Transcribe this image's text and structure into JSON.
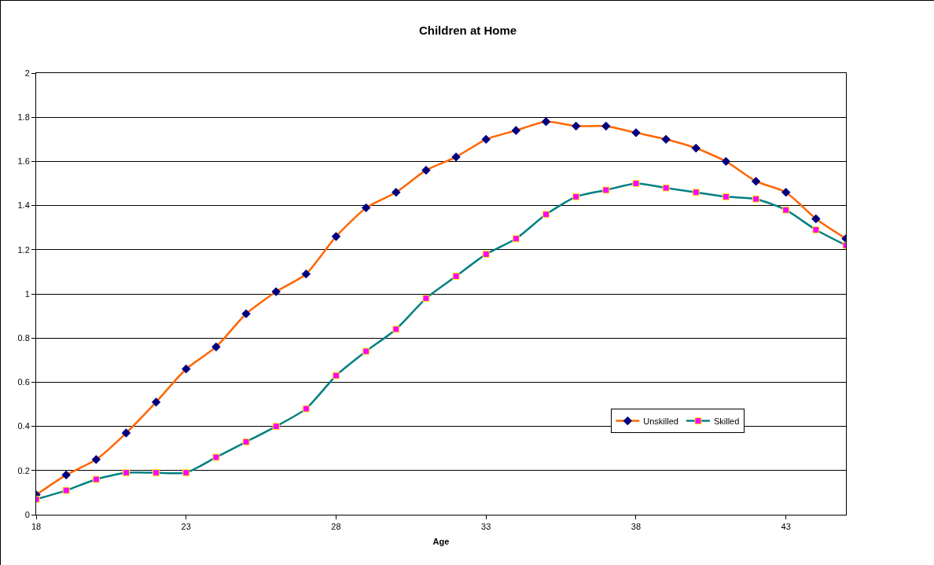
{
  "chart_data": {
    "type": "line",
    "title": "Children at Home",
    "xlabel": "Age",
    "x": [
      18,
      19,
      20,
      21,
      22,
      23,
      24,
      25,
      26,
      27,
      28,
      29,
      30,
      31,
      32,
      33,
      34,
      35,
      36,
      37,
      38,
      39,
      40,
      41,
      42,
      43,
      44,
      45
    ],
    "xlim": [
      18,
      45
    ],
    "xticks": [
      18,
      23,
      28,
      33,
      38,
      43
    ],
    "ylim": [
      0,
      2
    ],
    "yticks": [
      0,
      0.2,
      0.4,
      0.6,
      0.8,
      1,
      1.2,
      1.4,
      1.6,
      1.8,
      2
    ],
    "grid": "y",
    "legend": "bottom right",
    "line_style": "solid",
    "series": [
      {
        "name": "Unskilled",
        "color": "#ff6600",
        "marker": "diamond",
        "values": [
          0.09,
          0.18,
          0.25,
          0.37,
          0.51,
          0.66,
          0.76,
          0.91,
          1.01,
          1.09,
          1.26,
          1.39,
          1.46,
          1.56,
          1.62,
          1.7,
          1.74,
          1.78,
          1.76,
          1.76,
          1.73,
          1.7,
          1.66,
          1.6,
          1.51,
          1.46,
          1.34,
          1.25
        ]
      },
      {
        "name": "Skilled",
        "color": "#008080",
        "marker": "square",
        "values": [
          0.07,
          0.11,
          0.16,
          0.19,
          0.19,
          0.19,
          0.26,
          0.33,
          0.4,
          0.48,
          0.63,
          0.74,
          0.84,
          0.98,
          1.08,
          1.18,
          1.25,
          1.36,
          1.44,
          1.47,
          1.5,
          1.48,
          1.46,
          1.44,
          1.43,
          1.38,
          1.29,
          1.22
        ]
      }
    ]
  }
}
